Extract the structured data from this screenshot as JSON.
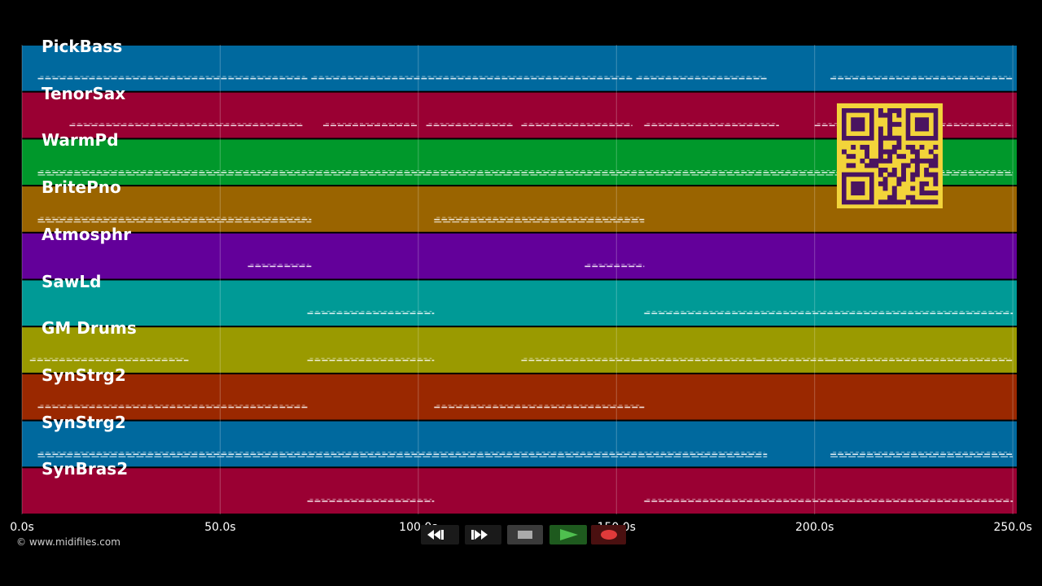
{
  "tracks": [
    {
      "name": "PickBass",
      "color": "#00699e"
    },
    {
      "name": "TenorSax",
      "color": "#9a0033"
    },
    {
      "name": "WarmPd",
      "color": "#00982b"
    },
    {
      "name": "BritePno",
      "color": "#9a6400"
    },
    {
      "name": "Atmosphr",
      "color": "#63009a"
    },
    {
      "name": "SawLd",
      "color": "#009a96"
    },
    {
      "name": "GM Drums",
      "color": "#9a9a00"
    },
    {
      "name": "SynStrg2",
      "color": "#9a2800"
    },
    {
      "name": "SynStrg2",
      "color": "#00699e"
    },
    {
      "name": "SynBras2",
      "color": "#9a0033"
    }
  ],
  "timeline": {
    "ticks": [
      "0.0s",
      "50.0s",
      "100.0s",
      "150.0s",
      "200.0s",
      "250.0s"
    ],
    "tick_values": [
      0,
      50,
      100,
      150,
      200,
      250
    ],
    "max_seconds": 251
  },
  "credit": "© www.midifiles.com",
  "transport": {
    "buttons": [
      {
        "name": "rewind-button",
        "icon": "rewind-icon"
      },
      {
        "name": "fast-forward-button",
        "icon": "fast-forward-icon"
      },
      {
        "name": "stop-button",
        "icon": "stop-icon"
      },
      {
        "name": "play-button",
        "icon": "play-icon"
      },
      {
        "name": "record-button",
        "icon": "record-icon"
      }
    ]
  },
  "qr_code": {
    "color": "#f2d43a",
    "ink": "#4a1460"
  },
  "note_segments": [
    [
      [
        4,
        72
      ],
      [
        73,
        154
      ],
      [
        155,
        188
      ],
      [
        204,
        250
      ]
    ],
    [
      [
        12,
        71
      ],
      [
        76,
        100
      ],
      [
        102,
        124
      ],
      [
        126,
        154
      ],
      [
        157,
        191
      ],
      [
        200,
        250
      ]
    ],
    [
      [
        4,
        250
      ]
    ],
    [
      [
        4,
        73
      ],
      [
        104,
        157
      ]
    ],
    [
      [
        57,
        73
      ],
      [
        142,
        157
      ]
    ],
    [
      [
        72,
        104
      ],
      [
        157,
        250
      ]
    ],
    [
      [
        2,
        42
      ],
      [
        72,
        104
      ],
      [
        126,
        155
      ],
      [
        155,
        186
      ],
      [
        186,
        204
      ],
      [
        204,
        250
      ]
    ],
    [
      [
        4,
        72
      ],
      [
        104,
        157
      ]
    ],
    [
      [
        4,
        188
      ],
      [
        204,
        250
      ]
    ],
    [
      [
        72,
        104
      ],
      [
        157,
        250
      ]
    ]
  ]
}
